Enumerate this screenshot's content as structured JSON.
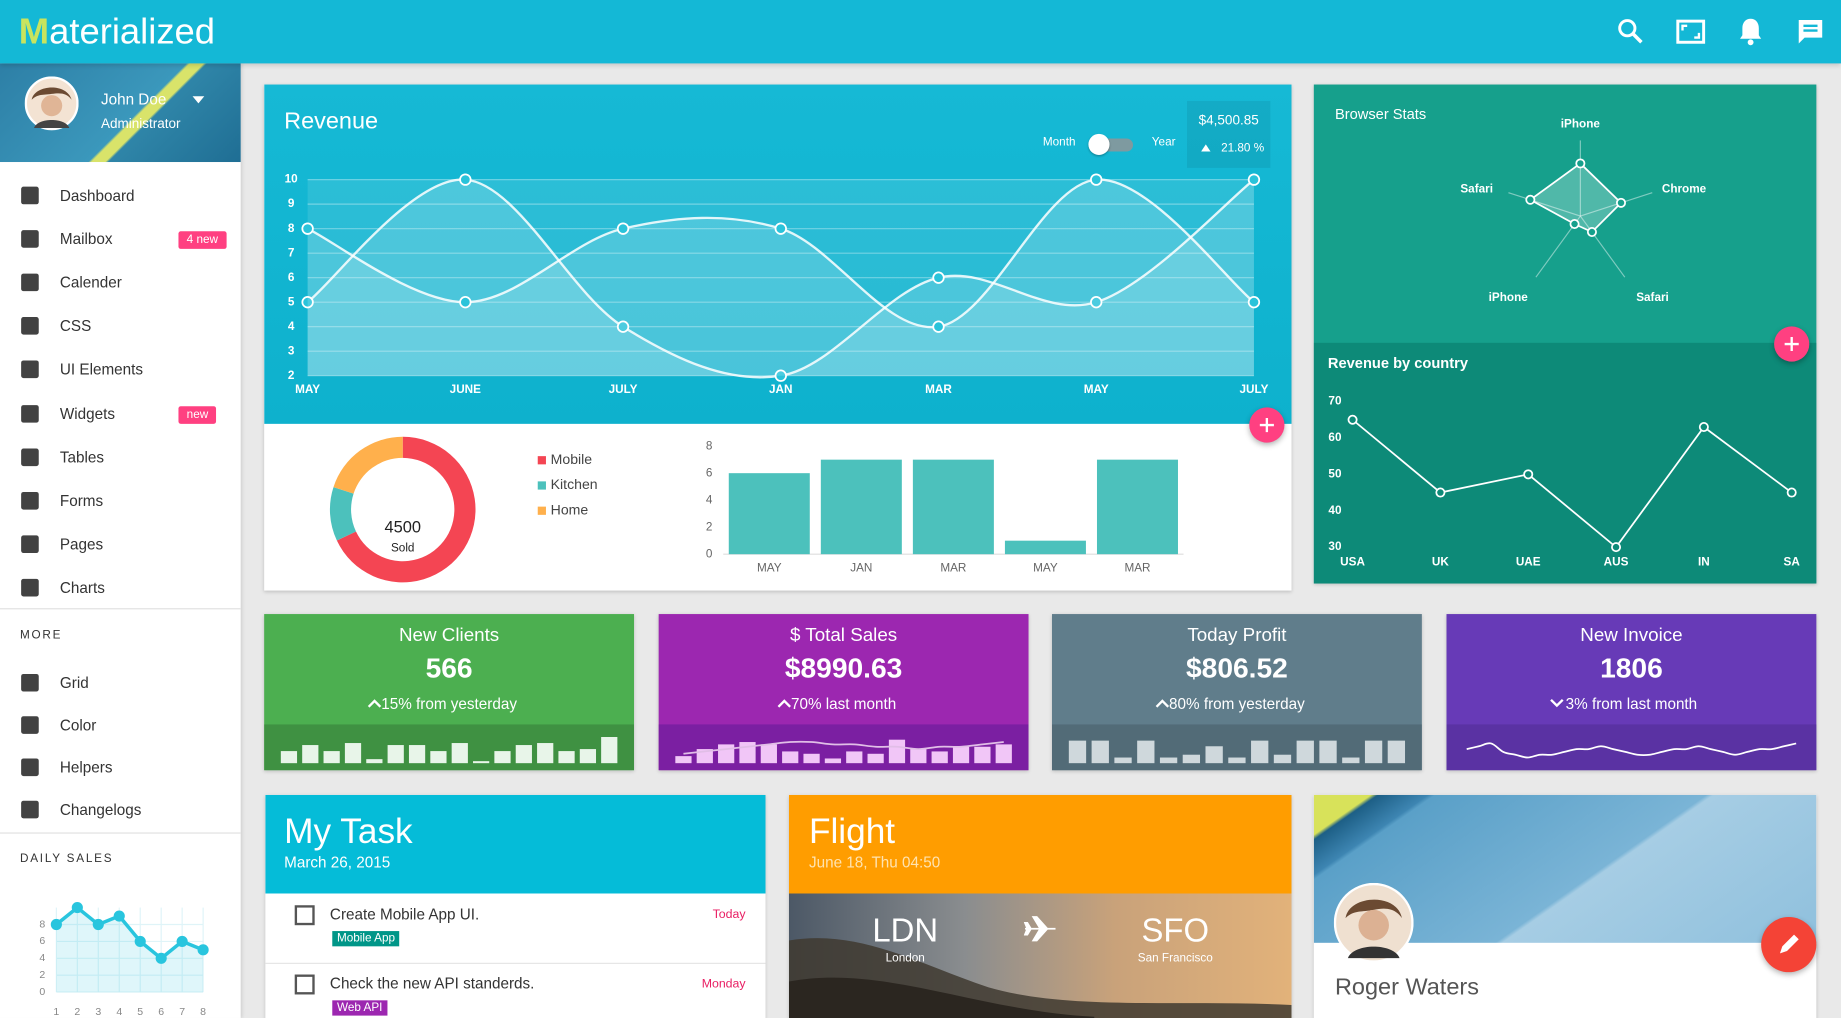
{
  "header": {
    "brand": "Materialized"
  },
  "sidebar": {
    "user": {
      "name": "John Doe",
      "role": "Administrator"
    },
    "menu": [
      {
        "label": "Dashboard"
      },
      {
        "label": "Mailbox",
        "badge": "4 new"
      },
      {
        "label": "Calender"
      },
      {
        "label": "CSS"
      },
      {
        "label": "UI Elements"
      },
      {
        "label": "Widgets",
        "badge": "new"
      },
      {
        "label": "Tables"
      },
      {
        "label": "Forms"
      },
      {
        "label": "Pages"
      },
      {
        "label": "Charts"
      }
    ],
    "more_title": "MORE",
    "more": [
      {
        "label": "Grid"
      },
      {
        "label": "Color"
      },
      {
        "label": "Helpers"
      },
      {
        "label": "Changelogs"
      }
    ],
    "daily_sales_title": "DAILY SALES"
  },
  "revenue_card": {
    "toggle_left": "Month",
    "toggle_right": "Year",
    "total": "$4,500.85",
    "change": "21.80 %"
  },
  "stats": {
    "cards": [
      {
        "title": "New Clients",
        "value": "566",
        "change": "15% from yesterday",
        "trend": "up",
        "color": "#4caf50",
        "strip_color": "#3f9142"
      },
      {
        "title": "$ Total Sales",
        "value": "$8990.63",
        "change": "70% last month",
        "trend": "up",
        "color": "#9c27b0",
        "strip_color": "#7b1fa2"
      },
      {
        "title": "Today Profit",
        "value": "$806.52",
        "change": "80% from yesterday",
        "trend": "up",
        "color": "#607d8b",
        "strip_color": "#526b77"
      },
      {
        "title": "New Invoice",
        "value": "1806",
        "change": "3% from last month",
        "trend": "down",
        "color": "#673ab7",
        "strip_color": "#5a32a3"
      }
    ]
  },
  "tasks": {
    "title": "My Task",
    "date": "March 26, 2015",
    "items": [
      {
        "text": "Create Mobile App UI.",
        "tag": "Mobile App",
        "tag_color": "#009688",
        "due": "Today"
      },
      {
        "text": "Check the new API standerds.",
        "tag": "Web API",
        "tag_color": "#9c27b0",
        "due": "Monday"
      }
    ]
  },
  "flight": {
    "title": "Flight",
    "date": "June 18, Thu 04:50",
    "from_code": "LDN",
    "from_city": "London",
    "to_code": "SFO",
    "to_city": "San Francisco"
  },
  "profile": {
    "name": "Roger Waters"
  },
  "chart_data": [
    {
      "type": "line",
      "title": "Revenue",
      "categories": [
        "MAY",
        "JUNE",
        "JULY",
        "JAN",
        "MAR",
        "MAY",
        "JULY"
      ],
      "series": [
        {
          "values": [
            5,
            10,
            4,
            2,
            6,
            5,
            10
          ],
          "color": "#ffffff"
        },
        {
          "values": [
            8,
            5,
            8,
            8,
            4,
            10,
            5
          ],
          "color": "#ffffff"
        }
      ],
      "ylim": [
        2,
        10
      ],
      "yticks": [
        2,
        3,
        4,
        5,
        6,
        7,
        8,
        9,
        10
      ],
      "grid": true,
      "smooth": true
    },
    {
      "type": "pie",
      "categories": [
        "Mobile",
        "Kitchen",
        "Home"
      ],
      "values": [
        68,
        12,
        20
      ],
      "colors": [
        "#f44553",
        "#4cc1bc",
        "#ffb04c"
      ],
      "total": 4500,
      "total_label": "Sold",
      "donut": true
    },
    {
      "type": "bar",
      "categories": [
        "MAY",
        "JAN",
        "MAR",
        "MAY",
        "MAR"
      ],
      "values": [
        6,
        7,
        7,
        1,
        7
      ],
      "color": "#4cc1bc",
      "ylim": [
        0,
        8
      ],
      "yticks": [
        0,
        2,
        4,
        6,
        8
      ]
    },
    {
      "type": "radar",
      "title": "Browser Stats",
      "categories": [
        "iPhone",
        "Chrome",
        "Safari",
        "iPhone",
        "Safari"
      ],
      "values": [
        80,
        65,
        30,
        15,
        80
      ],
      "rlim": [
        0,
        100
      ],
      "color": "#ffffff"
    },
    {
      "type": "line",
      "title": "Revenue by country",
      "categories": [
        "USA",
        "UK",
        "UAE",
        "AUS",
        "IN",
        "SA"
      ],
      "values": [
        65,
        45,
        50,
        30,
        63,
        45
      ],
      "ylim": [
        30,
        70
      ],
      "yticks": [
        30,
        40,
        50,
        60,
        70
      ],
      "color": "#ffffff"
    },
    {
      "type": "line",
      "x": [
        1,
        2,
        3,
        4,
        5,
        6,
        7,
        8
      ],
      "values": [
        8,
        10,
        8,
        9,
        6,
        4,
        6,
        5
      ],
      "xlim": [
        1,
        8
      ],
      "xticks": [
        1,
        2,
        3,
        4,
        5,
        6,
        7,
        8
      ],
      "ylim": [
        0,
        10
      ],
      "yticks": [
        0,
        2,
        4,
        6,
        8
      ],
      "grid": true,
      "color": "#29c5de"
    },
    {
      "type": "bar",
      "values": [
        6,
        9,
        6,
        10,
        2,
        9,
        9,
        6,
        10,
        1,
        6,
        9,
        10,
        6,
        7,
        13
      ],
      "ylim": [
        0,
        14
      ],
      "color": "#e8f5e9"
    },
    {
      "type": "bar",
      "series": [
        {
          "type": "bar",
          "values": [
            3,
            6,
            8,
            9,
            8,
            5,
            4,
            2,
            5,
            4,
            10,
            6,
            5,
            7,
            7,
            8
          ],
          "color": "#f1c6f7"
        },
        {
          "type": "line",
          "values": [
            4,
            5,
            6,
            7,
            8,
            9,
            9,
            8,
            8,
            7,
            7,
            6,
            7,
            7,
            8,
            9
          ],
          "color": "#e1bee7"
        }
      ],
      "ylim": [
        0,
        12
      ]
    },
    {
      "type": "bar",
      "values": [
        8,
        8,
        2,
        8,
        2,
        3,
        6,
        2,
        8,
        3,
        8,
        8,
        2,
        8,
        8
      ],
      "ylim": [
        0,
        10
      ],
      "color": "#cfd8dc"
    },
    {
      "type": "line",
      "values": [
        5,
        6,
        7,
        4,
        3,
        2,
        3,
        3,
        4,
        5,
        5,
        6,
        5,
        4,
        3,
        3,
        4,
        5,
        5,
        6,
        5,
        4,
        3,
        4,
        5,
        5,
        6,
        7
      ],
      "ylim": [
        0,
        10
      ],
      "color": "#ffffff"
    }
  ]
}
